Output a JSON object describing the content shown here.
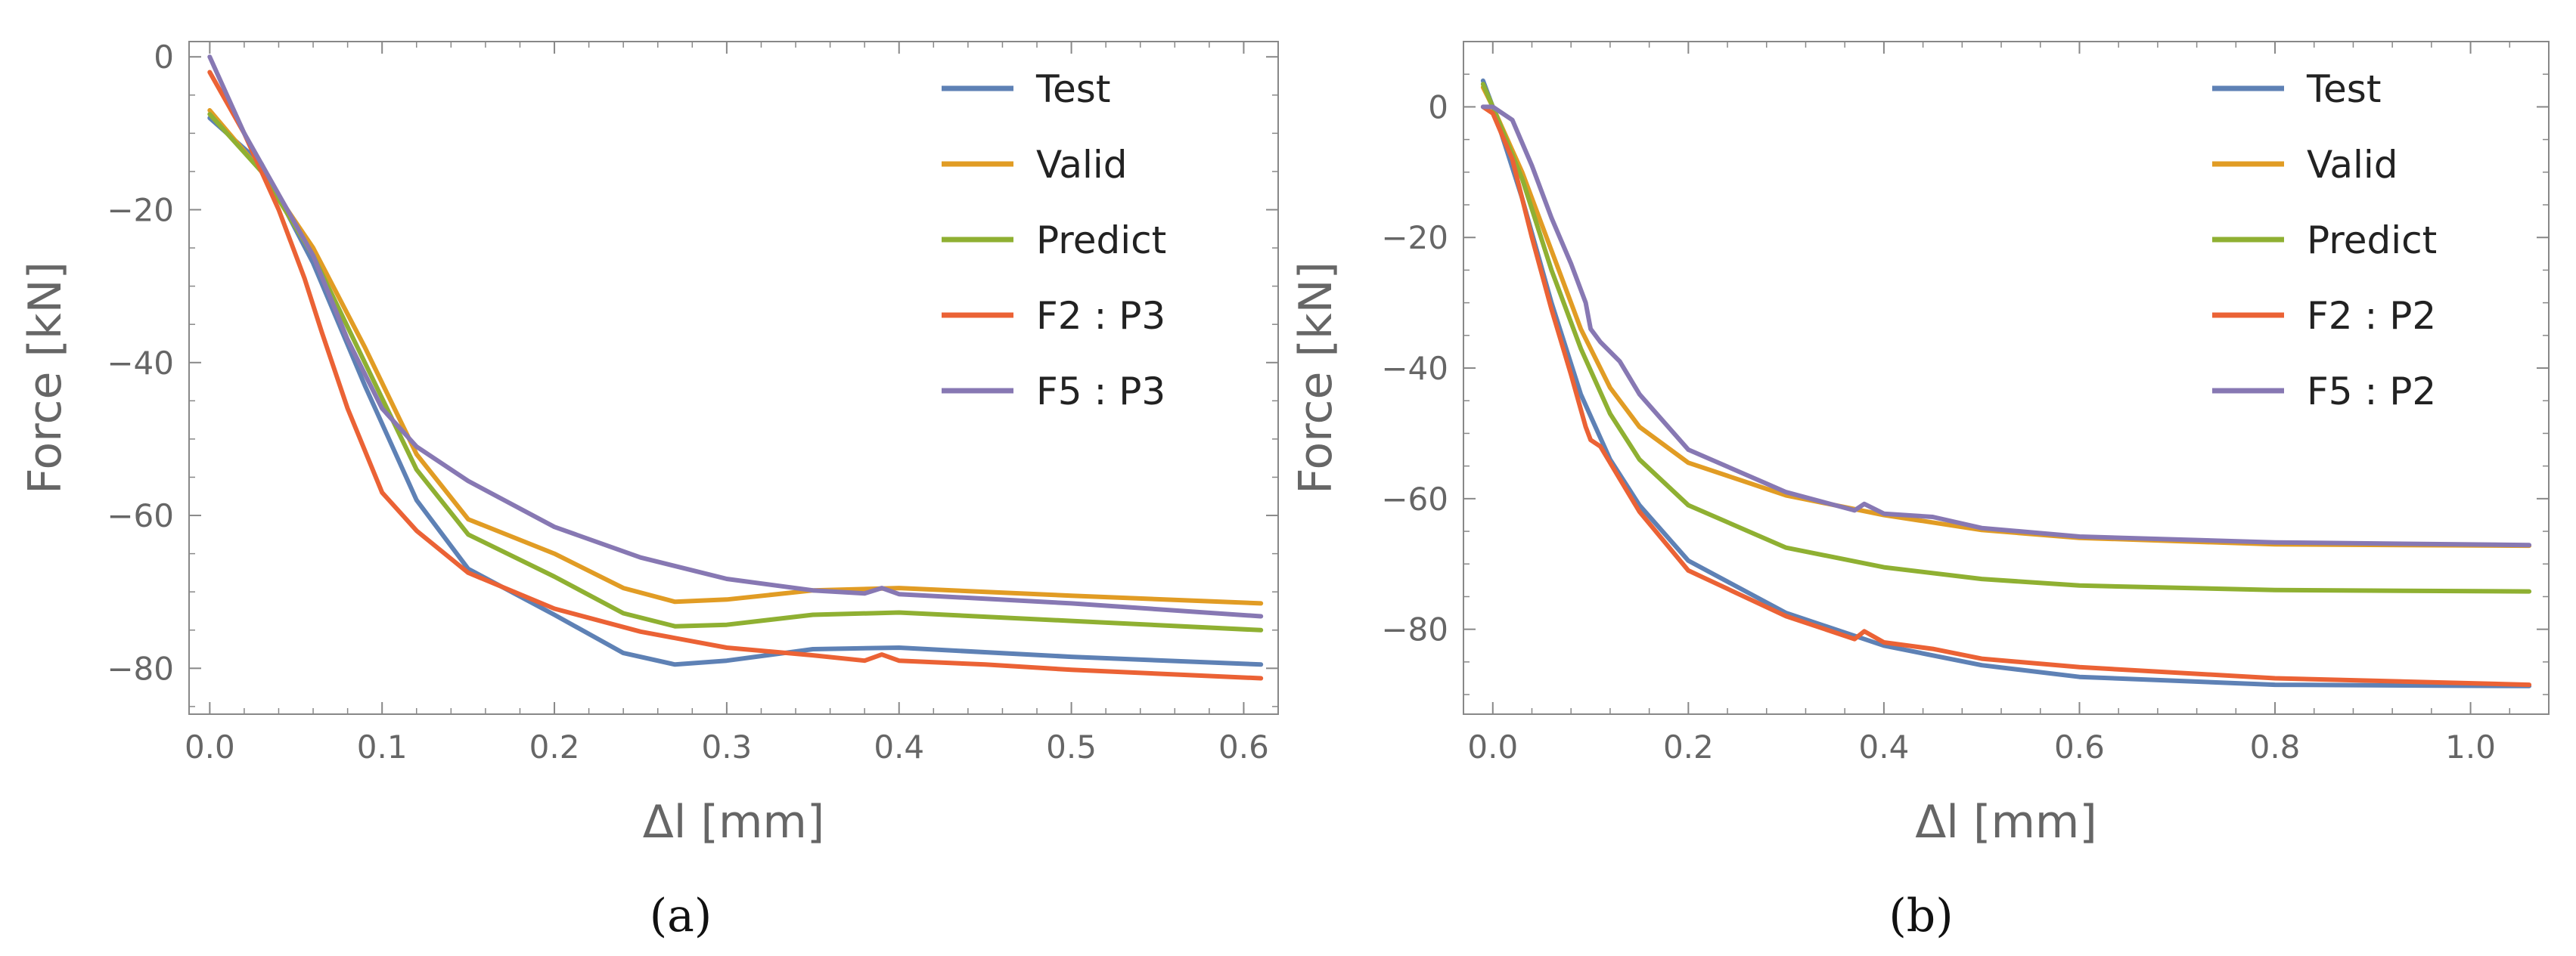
{
  "colors": {
    "Test": "#5E81B5",
    "Valid": "#E19C24",
    "Predict": "#8FB032",
    "F2": "#EB6235",
    "F5": "#8778B3"
  },
  "chart_data": [
    {
      "type": "line",
      "caption": "(a)",
      "xlabel": "Δl [mm]",
      "ylabel": "Force [kN]",
      "xlim": [
        -0.012,
        0.62
      ],
      "ylim": [
        -86,
        2
      ],
      "xticks": [
        0.0,
        0.1,
        0.2,
        0.3,
        0.4,
        0.5,
        0.6
      ],
      "xtick_labels": [
        "0.0",
        "0.1",
        "0.2",
        "0.3",
        "0.4",
        "0.5",
        "0.6"
      ],
      "yticks": [
        0,
        -20,
        -40,
        -60,
        -80
      ],
      "ytick_labels": [
        "0",
        "−20",
        "−40",
        "−60",
        "−80"
      ],
      "legend_position": "top-right",
      "grid": false,
      "series": [
        {
          "name": "Test",
          "color_key": "Test",
          "points": [
            [
              0.0,
              -8
            ],
            [
              0.03,
              -14
            ],
            [
              0.06,
              -27
            ],
            [
              0.09,
              -43
            ],
            [
              0.12,
              -58
            ],
            [
              0.15,
              -67
            ],
            [
              0.2,
              -73
            ],
            [
              0.24,
              -78
            ],
            [
              0.27,
              -79.5
            ],
            [
              0.3,
              -79
            ],
            [
              0.35,
              -77.5
            ],
            [
              0.4,
              -77.3
            ],
            [
              0.5,
              -78.5
            ],
            [
              0.61,
              -79.5
            ]
          ]
        },
        {
          "name": "Valid",
          "color_key": "Valid",
          "points": [
            [
              0.0,
              -7
            ],
            [
              0.03,
              -15
            ],
            [
              0.06,
              -25
            ],
            [
              0.09,
              -38
            ],
            [
              0.12,
              -52
            ],
            [
              0.15,
              -60.5
            ],
            [
              0.2,
              -65
            ],
            [
              0.24,
              -69.5
            ],
            [
              0.27,
              -71.3
            ],
            [
              0.3,
              -71
            ],
            [
              0.35,
              -69.8
            ],
            [
              0.4,
              -69.5
            ],
            [
              0.5,
              -70.5
            ],
            [
              0.61,
              -71.5
            ]
          ]
        },
        {
          "name": "Predict",
          "color_key": "Predict",
          "points": [
            [
              0.0,
              -7.5
            ],
            [
              0.03,
              -15
            ],
            [
              0.06,
              -26
            ],
            [
              0.09,
              -40
            ],
            [
              0.12,
              -54
            ],
            [
              0.15,
              -62.5
            ],
            [
              0.2,
              -68
            ],
            [
              0.24,
              -72.8
            ],
            [
              0.27,
              -74.5
            ],
            [
              0.3,
              -74.3
            ],
            [
              0.35,
              -73
            ],
            [
              0.4,
              -72.7
            ],
            [
              0.5,
              -73.8
            ],
            [
              0.61,
              -75
            ]
          ]
        },
        {
          "name": "F2 : P3",
          "color_key": "F2",
          "points": [
            [
              0.0,
              -2
            ],
            [
              0.02,
              -10
            ],
            [
              0.04,
              -20
            ],
            [
              0.055,
              -29
            ],
            [
              0.065,
              -36
            ],
            [
              0.08,
              -46
            ],
            [
              0.1,
              -57
            ],
            [
              0.12,
              -62
            ],
            [
              0.15,
              -67.5
            ],
            [
              0.2,
              -72.2
            ],
            [
              0.25,
              -75.2
            ],
            [
              0.3,
              -77.3
            ],
            [
              0.35,
              -78.3
            ],
            [
              0.38,
              -79
            ],
            [
              0.39,
              -78.2
            ],
            [
              0.4,
              -79
            ],
            [
              0.45,
              -79.5
            ],
            [
              0.5,
              -80.2
            ],
            [
              0.61,
              -81.3
            ]
          ]
        },
        {
          "name": "F5 : P3",
          "color_key": "F5",
          "points": [
            [
              0.0,
              0
            ],
            [
              0.01,
              -5
            ],
            [
              0.02,
              -10
            ],
            [
              0.04,
              -18
            ],
            [
              0.06,
              -26
            ],
            [
              0.08,
              -37
            ],
            [
              0.1,
              -46
            ],
            [
              0.12,
              -51
            ],
            [
              0.15,
              -55.5
            ],
            [
              0.2,
              -61.5
            ],
            [
              0.25,
              -65.5
            ],
            [
              0.3,
              -68.3
            ],
            [
              0.35,
              -69.8
            ],
            [
              0.38,
              -70.2
            ],
            [
              0.39,
              -69.5
            ],
            [
              0.4,
              -70.3
            ],
            [
              0.5,
              -71.5
            ],
            [
              0.61,
              -73.2
            ]
          ]
        }
      ]
    },
    {
      "type": "line",
      "caption": "(b)",
      "xlabel": "Δl [mm]",
      "ylabel": "Force [kN]",
      "xlim": [
        -0.03,
        1.08
      ],
      "ylim": [
        -93,
        10
      ],
      "xticks": [
        0.0,
        0.2,
        0.4,
        0.6,
        0.8,
        1.0
      ],
      "xtick_labels": [
        "0.0",
        "0.2",
        "0.4",
        "0.6",
        "0.8",
        "1.0"
      ],
      "yticks": [
        0,
        -20,
        -40,
        -60,
        -80
      ],
      "ytick_labels": [
        "0",
        "−20",
        "−40",
        "−60",
        "−80"
      ],
      "legend_position": "top-right",
      "grid": false,
      "series": [
        {
          "name": "Test",
          "color_key": "Test",
          "points": [
            [
              -0.01,
              4
            ],
            [
              0.0,
              0
            ],
            [
              0.03,
              -14
            ],
            [
              0.06,
              -30
            ],
            [
              0.09,
              -44
            ],
            [
              0.12,
              -54
            ],
            [
              0.15,
              -61
            ],
            [
              0.2,
              -69.5
            ],
            [
              0.3,
              -77.5
            ],
            [
              0.4,
              -82.5
            ],
            [
              0.5,
              -85.5
            ],
            [
              0.6,
              -87.3
            ],
            [
              0.8,
              -88.5
            ],
            [
              1.06,
              -88.7
            ]
          ]
        },
        {
          "name": "Valid",
          "color_key": "Valid",
          "points": [
            [
              -0.01,
              3
            ],
            [
              0.0,
              0
            ],
            [
              0.03,
              -10
            ],
            [
              0.06,
              -22
            ],
            [
              0.09,
              -34
            ],
            [
              0.12,
              -43
            ],
            [
              0.15,
              -49
            ],
            [
              0.2,
              -54.5
            ],
            [
              0.3,
              -59.5
            ],
            [
              0.4,
              -62.5
            ],
            [
              0.5,
              -64.8
            ],
            [
              0.6,
              -66
            ],
            [
              0.8,
              -67
            ],
            [
              1.06,
              -67.2
            ]
          ]
        },
        {
          "name": "Predict",
          "color_key": "Predict",
          "points": [
            [
              -0.01,
              3.5
            ],
            [
              0.0,
              0
            ],
            [
              0.03,
              -11
            ],
            [
              0.06,
              -25
            ],
            [
              0.09,
              -37
            ],
            [
              0.12,
              -47
            ],
            [
              0.15,
              -54
            ],
            [
              0.2,
              -61
            ],
            [
              0.3,
              -67.5
            ],
            [
              0.4,
              -70.5
            ],
            [
              0.5,
              -72.3
            ],
            [
              0.6,
              -73.3
            ],
            [
              0.8,
              -74
            ],
            [
              1.06,
              -74.2
            ]
          ]
        },
        {
          "name": "F2 : P2",
          "color_key": "F2",
          "points": [
            [
              -0.01,
              0
            ],
            [
              0.0,
              -1
            ],
            [
              0.02,
              -8
            ],
            [
              0.04,
              -20
            ],
            [
              0.06,
              -31
            ],
            [
              0.08,
              -41
            ],
            [
              0.095,
              -49
            ],
            [
              0.1,
              -51
            ],
            [
              0.11,
              -52
            ],
            [
              0.13,
              -57
            ],
            [
              0.15,
              -62
            ],
            [
              0.2,
              -71
            ],
            [
              0.3,
              -78
            ],
            [
              0.37,
              -81.5
            ],
            [
              0.38,
              -80.3
            ],
            [
              0.4,
              -82
            ],
            [
              0.45,
              -83
            ],
            [
              0.5,
              -84.5
            ],
            [
              0.6,
              -85.8
            ],
            [
              0.8,
              -87.5
            ],
            [
              1.06,
              -88.5
            ]
          ]
        },
        {
          "name": "F5 : P2",
          "color_key": "F5",
          "points": [
            [
              -0.01,
              0
            ],
            [
              0.0,
              0
            ],
            [
              0.02,
              -2
            ],
            [
              0.04,
              -9
            ],
            [
              0.06,
              -17
            ],
            [
              0.08,
              -24
            ],
            [
              0.095,
              -30
            ],
            [
              0.1,
              -34
            ],
            [
              0.11,
              -36
            ],
            [
              0.13,
              -39
            ],
            [
              0.15,
              -44
            ],
            [
              0.2,
              -52.5
            ],
            [
              0.3,
              -59
            ],
            [
              0.37,
              -61.8
            ],
            [
              0.38,
              -60.8
            ],
            [
              0.4,
              -62.3
            ],
            [
              0.45,
              -62.8
            ],
            [
              0.5,
              -64.5
            ],
            [
              0.6,
              -65.8
            ],
            [
              0.8,
              -66.7
            ],
            [
              1.06,
              -67.1
            ]
          ]
        }
      ]
    }
  ]
}
